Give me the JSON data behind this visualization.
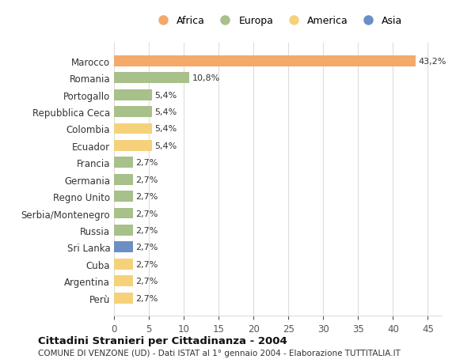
{
  "countries": [
    "Marocco",
    "Romania",
    "Portogallo",
    "Repubblica Ceca",
    "Colombia",
    "Ecuador",
    "Francia",
    "Germania",
    "Regno Unito",
    "Serbia/Montenegro",
    "Russia",
    "Sri Lanka",
    "Cuba",
    "Argentina",
    "Perù"
  ],
  "values": [
    43.2,
    10.8,
    5.4,
    5.4,
    5.4,
    5.4,
    2.7,
    2.7,
    2.7,
    2.7,
    2.7,
    2.7,
    2.7,
    2.7,
    2.7
  ],
  "labels": [
    "43,2%",
    "10,8%",
    "5,4%",
    "5,4%",
    "5,4%",
    "5,4%",
    "2,7%",
    "2,7%",
    "2,7%",
    "2,7%",
    "2,7%",
    "2,7%",
    "2,7%",
    "2,7%",
    "2,7%"
  ],
  "continents": [
    "Africa",
    "Europa",
    "Europa",
    "Europa",
    "America",
    "America",
    "Europa",
    "Europa",
    "Europa",
    "Europa",
    "Europa",
    "Asia",
    "America",
    "America",
    "America"
  ],
  "colors": {
    "Africa": "#F4A96A",
    "Europa": "#A8C08A",
    "America": "#F5D27A",
    "Asia": "#6B8FC4"
  },
  "legend_order": [
    "Africa",
    "Europa",
    "America",
    "Asia"
  ],
  "xlim": [
    0,
    47
  ],
  "xticks": [
    0,
    5,
    10,
    15,
    20,
    25,
    30,
    35,
    40,
    45
  ],
  "title": "Cittadini Stranieri per Cittadinanza - 2004",
  "subtitle": "COMUNE DI VENZONE (UD) - Dati ISTAT al 1° gennaio 2004 - Elaborazione TUTTITALIA.IT",
  "background_color": "#ffffff",
  "bar_height": 0.65,
  "grid_color": "#dddddd"
}
